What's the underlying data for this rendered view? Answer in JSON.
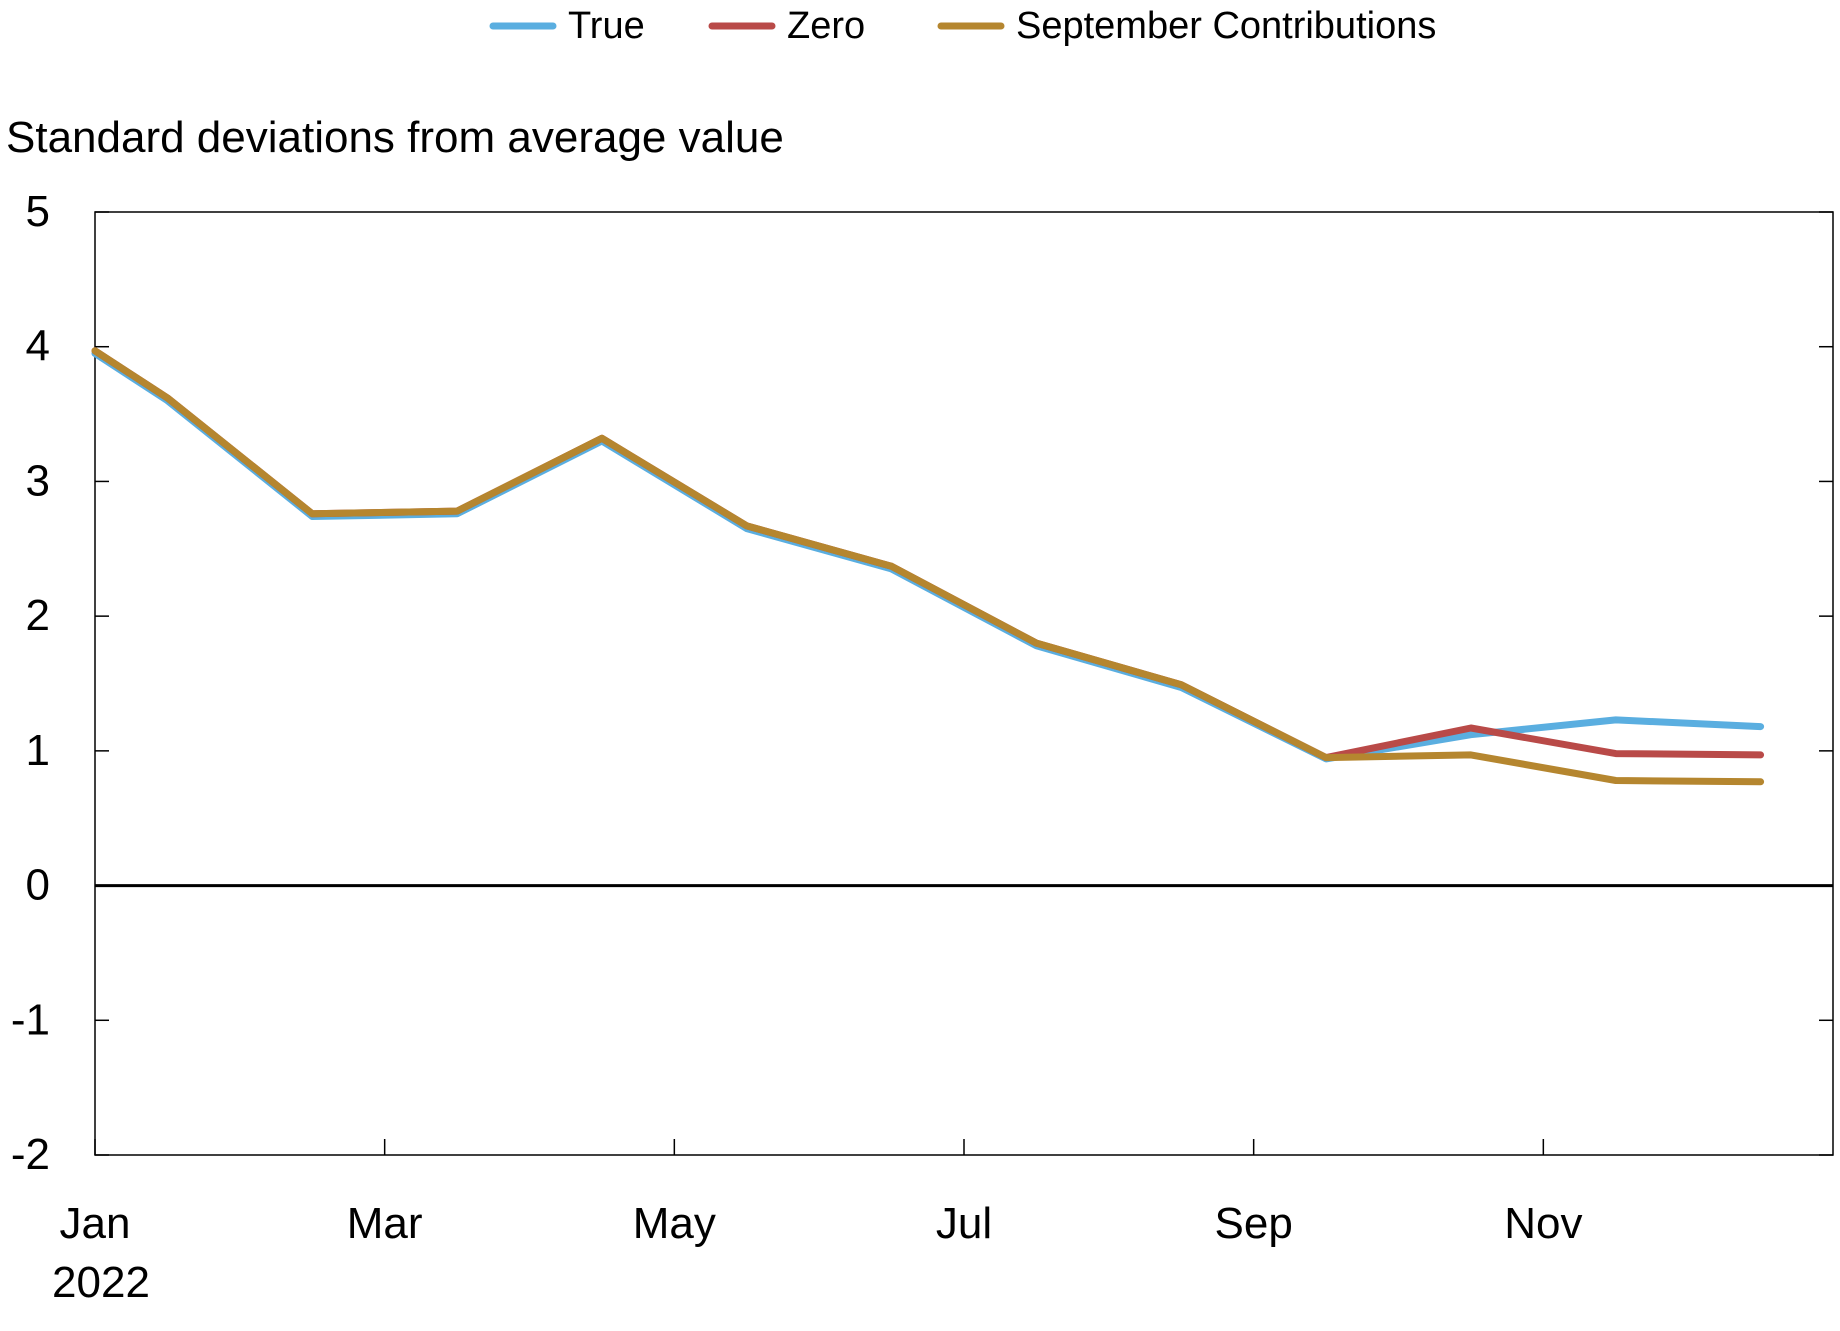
{
  "chart_data": {
    "type": "line",
    "title": "",
    "ylabel": "Standard deviations from average value",
    "xlabel": "",
    "ylim": [
      -2,
      5
    ],
    "yticks": [
      "5",
      "4",
      "3",
      "2",
      "1",
      "0",
      "-1",
      "-2"
    ],
    "ytick_values": [
      5,
      4,
      3,
      2,
      1,
      0,
      -1,
      -2
    ],
    "x_tick_labels": [
      "Jan",
      "Mar",
      "May",
      "Jul",
      "Sep",
      "Nov"
    ],
    "x_tick_months": [
      1,
      3,
      5,
      7,
      9,
      11
    ],
    "x_year_label": "2022",
    "x_months": [
      1,
      1.5,
      2.5,
      3.5,
      4.5,
      5.5,
      6.5,
      7.5,
      8.5,
      9.5,
      10.5,
      11.5,
      12.5
    ],
    "series": [
      {
        "name": "True",
        "color": "#5aaee0",
        "values": [
          3.95,
          3.6,
          2.74,
          2.76,
          3.3,
          2.65,
          2.35,
          1.78,
          1.47,
          0.94,
          1.12,
          1.23,
          1.18
        ]
      },
      {
        "name": "Zero",
        "color": "#b94a48",
        "values": [
          3.97,
          3.62,
          2.76,
          2.78,
          3.32,
          2.67,
          2.37,
          1.8,
          1.49,
          0.95,
          1.17,
          0.98,
          0.97
        ]
      },
      {
        "name": "September Contributions",
        "color": "#b5862f",
        "values": [
          3.97,
          3.62,
          2.76,
          2.78,
          3.32,
          2.67,
          2.37,
          1.8,
          1.49,
          0.95,
          0.97,
          0.78,
          0.77
        ]
      }
    ],
    "legend_position": "top-center",
    "grid": false
  }
}
